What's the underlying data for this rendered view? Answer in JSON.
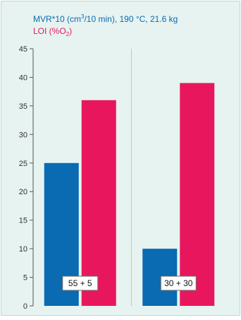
{
  "colors": {
    "background": "#e6f3f1",
    "border": "#bcd8d4",
    "series_1": "#0a6ab2",
    "series_2": "#e8175d",
    "axis": "#555555",
    "divider": "#b9c9cf"
  },
  "chart_data": {
    "type": "bar",
    "legend": [
      {
        "text": "MVR*10 (cm",
        "sup": "3",
        "tail": "/10 min), 190 °C, 21.6 kg"
      },
      {
        "text": "LOI (%O",
        "sub": "2",
        "tail": ")"
      }
    ],
    "categories": [
      "55 + 5",
      "30 + 30"
    ],
    "series": [
      {
        "values": [
          25,
          10
        ]
      },
      {
        "values": [
          36,
          39
        ]
      }
    ],
    "ylim": [
      0,
      45
    ],
    "yticks": [
      0,
      5,
      10,
      15,
      20,
      25,
      30,
      35,
      40,
      45
    ],
    "grid": false,
    "legend_placement": "top-left"
  }
}
